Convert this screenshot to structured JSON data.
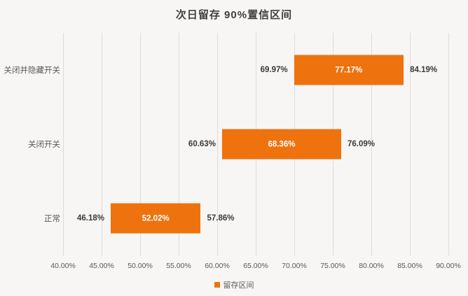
{
  "chart_data": {
    "type": "bar",
    "orientation": "horizontal",
    "title": "次日留存 90%置信区间",
    "categories": [
      "关闭并隐藏开关",
      "关闭开关",
      "正常"
    ],
    "series": [
      {
        "name": "留存区间",
        "points": [
          {
            "category": "关闭并隐藏开关",
            "low": 69.97,
            "mid": 77.17,
            "high": 84.19,
            "low_label": "69.97%",
            "mid_label": "77.17%",
            "high_label": "84.19%"
          },
          {
            "category": "关闭开关",
            "low": 60.63,
            "mid": 68.36,
            "high": 76.09,
            "low_label": "60.63%",
            "mid_label": "68.36%",
            "high_label": "76.09%"
          },
          {
            "category": "正常",
            "low": 46.18,
            "mid": 52.02,
            "high": 57.86,
            "low_label": "46.18%",
            "mid_label": "52.02%",
            "high_label": "57.86%"
          }
        ]
      }
    ],
    "xlim": [
      40,
      90
    ],
    "x_tick_values": [
      40,
      45,
      50,
      55,
      60,
      65,
      70,
      75,
      80,
      85,
      90
    ],
    "x_tick_labels": [
      "40.00%",
      "45.00%",
      "50.00%",
      "55.00%",
      "60.00%",
      "65.00%",
      "70.00%",
      "75.00%",
      "80.00%",
      "85.00%",
      "90.00%"
    ],
    "grid": true,
    "legend": {
      "label": "留存区间",
      "position": "bottom"
    },
    "colors": {
      "bar": "#EE720E",
      "background": "#F7F6F4",
      "gridline": "#DEDCD8",
      "axis_text": "#595959",
      "data_label": "#3A3A3A",
      "inside_label": "#FFFFFF",
      "title_text": "#3F3F3F"
    }
  }
}
